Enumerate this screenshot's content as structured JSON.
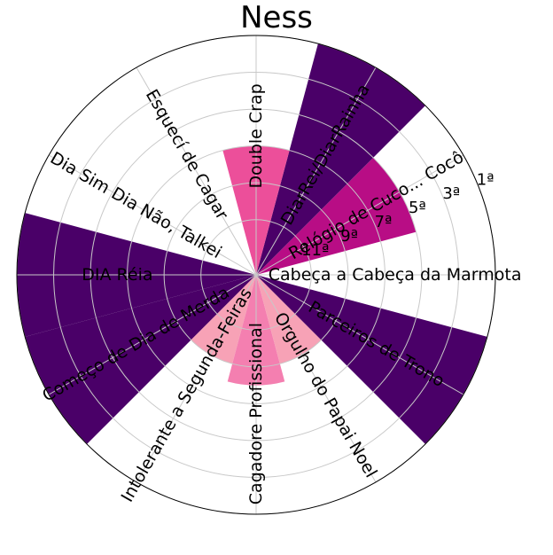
{
  "chart_data": {
    "type": "polar-bar",
    "title": "Ness",
    "radial_tick_labels": [
      "1ª",
      "3ª",
      "5ª",
      "7ª",
      "9ª",
      "11ª"
    ],
    "categories": [
      "Cabeça a Cabeça da Marmota",
      "Relógio de Cuco... Cocô",
      "DiarRei/DiarRainha",
      "Double Crap",
      "Esquecí de Cagar",
      "Dia Sim Dia Não, Talkei",
      "DIA Réia",
      "Começo de Dia de Merda",
      "Intolerante a Segunda-Feiras",
      "Cagadore Profissional",
      "Orgulho do Papai Noel",
      "Parceiros de Trono"
    ],
    "values": [
      13,
      5,
      1,
      7,
      13,
      13,
      1,
      1,
      9,
      8,
      9,
      1
    ],
    "colors": [
      "#ffffff",
      "#b80d85",
      "#4a0068",
      "#ec4f9a",
      "#ffffff",
      "#ffffff",
      "#4a0068",
      "#4a0068",
      "#f7a2b6",
      "#f47fb0",
      "#f7a2b6",
      "#4a0068"
    ],
    "rank_range": [
      1,
      13
    ],
    "grid": true
  }
}
